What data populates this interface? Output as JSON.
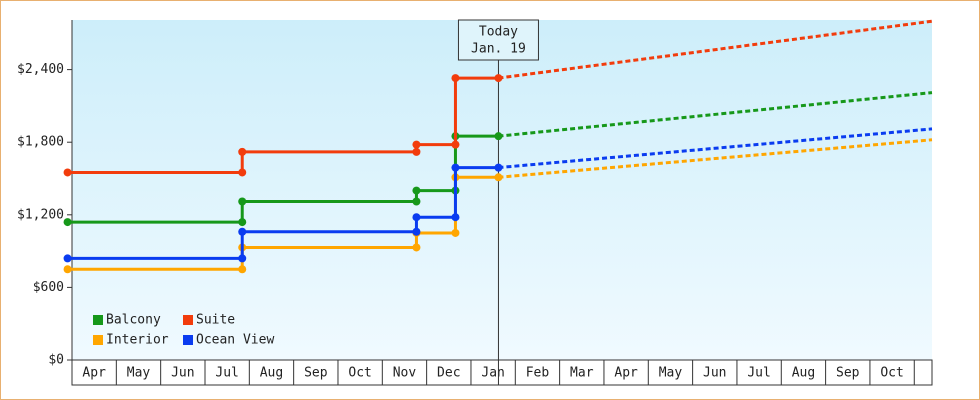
{
  "chart_data": {
    "type": "step-line",
    "annotation": {
      "lines": [
        "Today",
        "Jan. 19"
      ],
      "x": 9.62
    },
    "xlim": [
      0,
      19.4
    ],
    "xticks": [
      {
        "value": 0.5,
        "label": "Apr"
      },
      {
        "value": 1.5,
        "label": "May"
      },
      {
        "value": 2.5,
        "label": "Jun"
      },
      {
        "value": 3.5,
        "label": "Jul"
      },
      {
        "value": 4.5,
        "label": "Aug"
      },
      {
        "value": 5.5,
        "label": "Sep"
      },
      {
        "value": 6.5,
        "label": "Oct"
      },
      {
        "value": 7.5,
        "label": "Nov"
      },
      {
        "value": 8.5,
        "label": "Dec"
      },
      {
        "value": 9.5,
        "label": "Jan"
      },
      {
        "value": 10.5,
        "label": "Feb"
      },
      {
        "value": 11.5,
        "label": "Mar"
      },
      {
        "value": 12.5,
        "label": "Apr"
      },
      {
        "value": 13.5,
        "label": "May"
      },
      {
        "value": 14.5,
        "label": "Jun"
      },
      {
        "value": 15.5,
        "label": "Jul"
      },
      {
        "value": 16.5,
        "label": "Aug"
      },
      {
        "value": 17.5,
        "label": "Sep"
      },
      {
        "value": 18.5,
        "label": "Oct"
      }
    ],
    "ylim": [
      0,
      2810
    ],
    "yticks": [
      {
        "value": 0,
        "label": "$0"
      },
      {
        "value": 600,
        "label": "$600"
      },
      {
        "value": 1200,
        "label": "$1,200"
      },
      {
        "value": 1800,
        "label": "$1,800"
      },
      {
        "value": 2400,
        "label": "$2,400"
      }
    ],
    "series": [
      {
        "name": "Balcony",
        "color": "#16981a",
        "x": [
          -0.1,
          3.84,
          3.84,
          7.77,
          7.77,
          8.65,
          8.65,
          9.62
        ],
        "values": [
          1140,
          1140,
          1310,
          1310,
          1400,
          1400,
          1850,
          1850
        ],
        "forecast_x": [
          9.62,
          19.4
        ],
        "forecast_values": [
          1850,
          2210
        ]
      },
      {
        "name": "Suite",
        "color": "#f23c0c",
        "x": [
          -0.1,
          3.84,
          3.84,
          7.77,
          7.77,
          8.65,
          8.65,
          9.62
        ],
        "values": [
          1550,
          1550,
          1720,
          1720,
          1780,
          1780,
          2330,
          2330
        ],
        "forecast_x": [
          9.62,
          19.4
        ],
        "forecast_values": [
          2330,
          2800
        ]
      },
      {
        "name": "Interior",
        "color": "#ffa600",
        "x": [
          -0.1,
          3.84,
          3.84,
          7.77,
          7.77,
          8.65,
          8.65,
          9.62
        ],
        "values": [
          750,
          750,
          930,
          930,
          1050,
          1050,
          1510,
          1510
        ],
        "forecast_x": [
          9.62,
          19.4
        ],
        "forecast_values": [
          1510,
          1820
        ]
      },
      {
        "name": "Ocean View",
        "color": "#0a3cf0",
        "x": [
          -0.1,
          3.84,
          3.84,
          7.77,
          7.77,
          8.65,
          8.65,
          9.62
        ],
        "values": [
          840,
          840,
          1060,
          1060,
          1180,
          1180,
          1590,
          1590
        ],
        "forecast_x": [
          9.62,
          19.4
        ],
        "forecast_values": [
          1590,
          1910
        ]
      }
    ]
  }
}
